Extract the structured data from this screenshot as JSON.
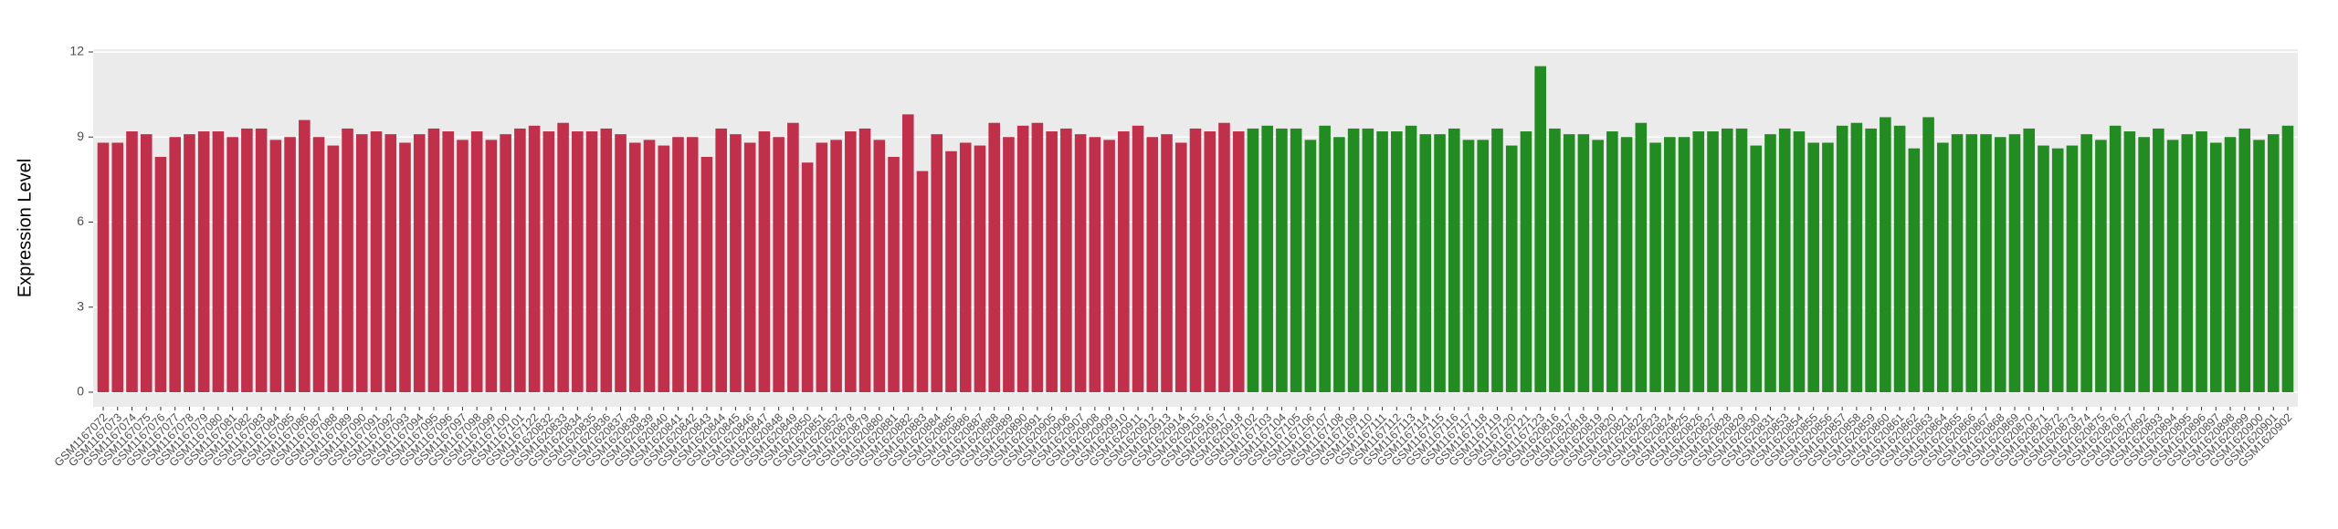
{
  "chart_data": {
    "type": "bar",
    "y_label": "Expression Level",
    "categories": [
      "GSM1167072",
      "GSM1167073",
      "GSM1167074",
      "GSM1167075",
      "GSM1167076",
      "GSM1167077",
      "GSM1167078",
      "GSM1167079",
      "GSM1167080",
      "GSM1167081",
      "GSM1167082",
      "GSM1167083",
      "GSM1167084",
      "GSM1167085",
      "GSM1167086",
      "GSM1167087",
      "GSM1167088",
      "GSM1167089",
      "GSM1167090",
      "GSM1167091",
      "GSM1167092",
      "GSM1167093",
      "GSM1167094",
      "GSM1167095",
      "GSM1167096",
      "GSM1167097",
      "GSM1167098",
      "GSM1167099",
      "GSM1167100",
      "GSM1167101",
      "GSM1167122",
      "GSM1620832",
      "GSM1620833",
      "GSM1620834",
      "GSM1620835",
      "GSM1620836",
      "GSM1620837",
      "GSM1620838",
      "GSM1620839",
      "GSM1620840",
      "GSM1620841",
      "GSM1620842",
      "GSM1620843",
      "GSM1620844",
      "GSM1620845",
      "GSM1620846",
      "GSM1620847",
      "GSM1620848",
      "GSM1620849",
      "GSM1620850",
      "GSM1620851",
      "GSM1620852",
      "GSM1620878",
      "GSM1620879",
      "GSM1620880",
      "GSM1620881",
      "GSM1620882",
      "GSM1620883",
      "GSM1620884",
      "GSM1620885",
      "GSM1620886",
      "GSM1620887",
      "GSM1620888",
      "GSM1620889",
      "GSM1620890",
      "GSM1620891",
      "GSM1620905",
      "GSM1620906",
      "GSM1620907",
      "GSM1620908",
      "GSM1620909",
      "GSM1620910",
      "GSM1620911",
      "GSM1620912",
      "GSM1620913",
      "GSM1620914",
      "GSM1620915",
      "GSM1620916",
      "GSM1620917",
      "GSM1620918",
      "GSM1167102",
      "GSM1167103",
      "GSM1167104",
      "GSM1167105",
      "GSM1167106",
      "GSM1167107",
      "GSM1167108",
      "GSM1167109",
      "GSM1167110",
      "GSM1167111",
      "GSM1167112",
      "GSM1167113",
      "GSM1167114",
      "GSM1167115",
      "GSM1167116",
      "GSM1167117",
      "GSM1167118",
      "GSM1167119",
      "GSM1167120",
      "GSM1167121",
      "GSM1167123",
      "GSM1620816",
      "GSM1620817",
      "GSM1620818",
      "GSM1620819",
      "GSM1620820",
      "GSM1620821",
      "GSM1620822",
      "GSM1620823",
      "GSM1620824",
      "GSM1620825",
      "GSM1620826",
      "GSM1620827",
      "GSM1620828",
      "GSM1620829",
      "GSM1620830",
      "GSM1620831",
      "GSM1620853",
      "GSM1620854",
      "GSM1620855",
      "GSM1620856",
      "GSM1620857",
      "GSM1620858",
      "GSM1620859",
      "GSM1620860",
      "GSM1620861",
      "GSM1620862",
      "GSM1620863",
      "GSM1620864",
      "GSM1620865",
      "GSM1620866",
      "GSM1620867",
      "GSM1620868",
      "GSM1620869",
      "GSM1620870",
      "GSM1620871",
      "GSM1620872",
      "GSM1620873",
      "GSM1620874",
      "GSM1620875",
      "GSM1620876",
      "GSM1620877",
      "GSM1620892",
      "GSM1620893",
      "GSM1620894",
      "GSM1620895",
      "GSM1620896",
      "GSM1620897",
      "GSM1620898",
      "GSM1620899",
      "GSM1620900",
      "GSM1620901",
      "GSM1620902"
    ],
    "values": [
      8.8,
      8.8,
      9.2,
      9.1,
      8.3,
      9.0,
      9.1,
      9.2,
      9.2,
      9.0,
      9.3,
      9.3,
      8.9,
      9.0,
      9.6,
      9.0,
      8.7,
      9.3,
      9.1,
      9.2,
      9.1,
      8.8,
      9.1,
      9.3,
      9.2,
      8.9,
      9.2,
      8.9,
      9.1,
      9.3,
      9.4,
      9.2,
      9.5,
      9.2,
      9.2,
      9.3,
      9.1,
      8.8,
      8.9,
      8.7,
      9.0,
      9.0,
      8.3,
      9.3,
      9.1,
      8.8,
      9.2,
      9.0,
      9.5,
      8.1,
      8.8,
      8.9,
      9.2,
      9.3,
      8.9,
      8.3,
      9.8,
      7.8,
      9.1,
      8.5,
      8.8,
      8.7,
      9.5,
      9.0,
      9.4,
      9.5,
      9.2,
      9.3,
      9.1,
      9.0,
      8.9,
      9.2,
      9.4,
      9.0,
      9.1,
      8.8,
      9.3,
      9.2,
      9.5,
      9.2,
      9.3,
      9.4,
      9.3,
      9.3,
      8.9,
      9.4,
      9.0,
      9.3,
      9.3,
      9.2,
      9.2,
      9.4,
      9.1,
      9.1,
      9.3,
      8.9,
      8.9,
      9.3,
      8.7,
      9.2,
      11.5,
      9.3,
      9.1,
      9.1,
      8.9,
      9.2,
      9.0,
      9.5,
      8.8,
      9.0,
      9.0,
      9.2,
      9.2,
      9.3,
      9.3,
      8.7,
      9.1,
      9.3,
      9.2,
      8.8,
      8.8,
      9.4,
      9.5,
      9.3,
      9.7,
      9.4,
      8.6,
      9.7,
      8.8,
      9.1,
      9.1,
      9.1,
      9.0,
      9.1,
      9.3,
      8.7,
      8.6,
      8.7,
      9.1,
      8.9,
      9.4,
      9.2,
      9.0,
      9.3,
      8.9,
      9.1,
      9.2,
      8.8,
      9.0,
      9.3,
      8.9,
      9.1,
      9.4
    ],
    "colors": [
      "#c0304a",
      "#c0304a",
      "#c0304a",
      "#c0304a",
      "#c0304a",
      "#c0304a",
      "#c0304a",
      "#c0304a",
      "#c0304a",
      "#c0304a",
      "#c0304a",
      "#c0304a",
      "#c0304a",
      "#c0304a",
      "#c0304a",
      "#c0304a",
      "#c0304a",
      "#c0304a",
      "#c0304a",
      "#c0304a",
      "#c0304a",
      "#c0304a",
      "#c0304a",
      "#c0304a",
      "#c0304a",
      "#c0304a",
      "#c0304a",
      "#c0304a",
      "#c0304a",
      "#c0304a",
      "#c0304a",
      "#c0304a",
      "#c0304a",
      "#c0304a",
      "#c0304a",
      "#c0304a",
      "#c0304a",
      "#c0304a",
      "#c0304a",
      "#c0304a",
      "#c0304a",
      "#c0304a",
      "#c0304a",
      "#c0304a",
      "#c0304a",
      "#c0304a",
      "#c0304a",
      "#c0304a",
      "#c0304a",
      "#c0304a",
      "#c0304a",
      "#c0304a",
      "#c0304a",
      "#c0304a",
      "#c0304a",
      "#c0304a",
      "#c0304a",
      "#c0304a",
      "#c0304a",
      "#c0304a",
      "#c0304a",
      "#c0304a",
      "#c0304a",
      "#c0304a",
      "#c0304a",
      "#c0304a",
      "#c0304a",
      "#c0304a",
      "#c0304a",
      "#c0304a",
      "#c0304a",
      "#c0304a",
      "#c0304a",
      "#c0304a",
      "#c0304a",
      "#c0304a",
      "#c0304a",
      "#c0304a",
      "#c0304a",
      "#c0304a",
      "#228b22",
      "#228b22",
      "#228b22",
      "#228b22",
      "#228b22",
      "#228b22",
      "#228b22",
      "#228b22",
      "#228b22",
      "#228b22",
      "#228b22",
      "#228b22",
      "#228b22",
      "#228b22",
      "#228b22",
      "#228b22",
      "#228b22",
      "#228b22",
      "#228b22",
      "#228b22",
      "#228b22",
      "#228b22",
      "#228b22",
      "#228b22",
      "#228b22",
      "#228b22",
      "#228b22",
      "#228b22",
      "#228b22",
      "#228b22",
      "#228b22",
      "#228b22",
      "#228b22",
      "#228b22",
      "#228b22",
      "#228b22",
      "#228b22",
      "#228b22",
      "#228b22",
      "#228b22",
      "#228b22",
      "#228b22",
      "#228b22",
      "#228b22",
      "#228b22",
      "#228b22",
      "#228b22",
      "#228b22",
      "#228b22",
      "#228b22",
      "#228b22",
      "#228b22",
      "#228b22",
      "#228b22",
      "#228b22",
      "#228b22",
      "#228b22",
      "#228b22",
      "#228b22",
      "#228b22",
      "#228b22",
      "#228b22",
      "#228b22",
      "#228b22",
      "#228b22",
      "#228b22",
      "#228b22",
      "#228b22",
      "#228b22",
      "#228b22",
      "#228b22",
      "#228b22",
      "#228b22"
    ],
    "ylim": [
      0,
      12
    ],
    "yticks": [
      0,
      3,
      6,
      9,
      12
    ],
    "grid": true
  }
}
